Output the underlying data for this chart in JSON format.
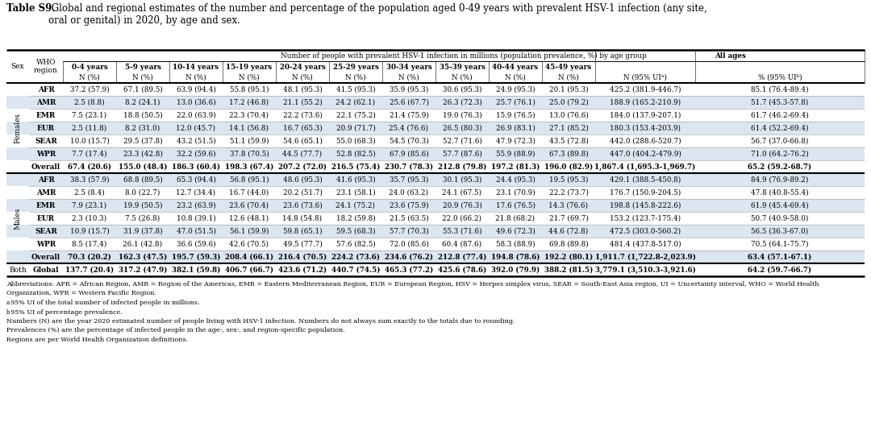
{
  "title_bold": "Table S9.",
  "title_rest": " Global and regional estimates of the number and percentage of the population aged 0-49 years with prevalent HSV-1 infection (any site,\noral or genital) in 2020, by age and sex.",
  "header_main": "Number of people with prevalent HSV-1 infection in millions (population prevalence, %) by age group",
  "females_data": [
    [
      "AFR",
      "37.2 (57.9)",
      "67.1 (89.5)",
      "63.9 (94.4)",
      "55.8 (95.1)",
      "48.1 (95.3)",
      "41.5 (95.3)",
      "35.9 (95.3)",
      "30.6 (95.3)",
      "24.9 (95.3)",
      "20.1 (95.3)",
      "425.2 (381.9-446.7)",
      "85.1 (76.4-89.4)"
    ],
    [
      "AMR",
      "2.5 (8.8)",
      "8.2 (24.1)",
      "13.0 (36.6)",
      "17.2 (46.8)",
      "21.1 (55.2)",
      "24.2 (62.1)",
      "25.6 (67.7)",
      "26.3 (72.3)",
      "25.7 (76.1)",
      "25.0 (79.2)",
      "188.9 (165.2-210.9)",
      "51.7 (45.3-57.8)"
    ],
    [
      "EMR",
      "7.5 (23.1)",
      "18.8 (50.5)",
      "22.0 (63.9)",
      "22.3 (70.4)",
      "22.2 (73.6)",
      "22.1 (75.2)",
      "21.4 (75.9)",
      "19.0 (76.3)",
      "15.9 (76.5)",
      "13.0 (76.6)",
      "184.0 (137.9-207.1)",
      "61.7 (46.2-69.4)"
    ],
    [
      "EUR",
      "2.5 (11.8)",
      "8.2 (31.0)",
      "12.0 (45.7)",
      "14.1 (56.8)",
      "16.7 (65.3)",
      "20.9 (71.7)",
      "25.4 (76.6)",
      "26.5 (80.3)",
      "26.9 (83.1)",
      "27.1 (85.2)",
      "180.3 (153.4-203.9)",
      "61.4 (52.2-69.4)"
    ],
    [
      "SEAR",
      "10.0 (15.7)",
      "29.5 (37.8)",
      "43.2 (51.5)",
      "51.1 (59.9)",
      "54.6 (65.1)",
      "55.0 (68.3)",
      "54.5 (70.3)",
      "52.7 (71.6)",
      "47.9 (72.3)",
      "43.5 (72.8)",
      "442.0 (288.6-520.7)",
      "56.7 (37.0-66.8)"
    ],
    [
      "WPR",
      "7.7 (17.4)",
      "23.3 (42.8)",
      "32.2 (59.6)",
      "37.8 (70.5)",
      "44.5 (77.7)",
      "52.8 (82.5)",
      "67.9 (85.6)",
      "57.7 (87.6)",
      "55.9 (88.9)",
      "67.3 (89.8)",
      "447.0 (404.2-479.9)",
      "71.0 (64.2-76.2)"
    ],
    [
      "Overall",
      "67.4 (20.6)",
      "155.0 (48.4)",
      "186.3 (60.4)",
      "198.3 (67.4)",
      "207.2 (72.0)",
      "216.5 (75.4)",
      "230.7 (78.3)",
      "212.8 (79.8)",
      "197.2 (81.3)",
      "196.0 (82.9)",
      "1,867.4 (1,695.3-1,969.7)",
      "65.2 (59.2-68.7)"
    ]
  ],
  "males_data": [
    [
      "AFR",
      "38.3 (57.9)",
      "68.8 (89.5)",
      "65.3 (94.4)",
      "56.8 (95.1)",
      "48.6 (95.3)",
      "41.6 (95.3)",
      "35.7 (95.3)",
      "30.1 (95.3)",
      "24.4 (95.3)",
      "19.5 (95.3)",
      "429.1 (388.5-450.8)",
      "84.9 (76.9-89.2)"
    ],
    [
      "AMR",
      "2.5 (8.4)",
      "8.0 (22.7)",
      "12.7 (34.4)",
      "16.7 (44.0)",
      "20.2 (51.7)",
      "23.1 (58.1)",
      "24.0 (63.2)",
      "24.1 (67.5)",
      "23.1 (70.9)",
      "22.2 (73.7)",
      "176.7 (150.9-204.5)",
      "47.8 (40.8-55.4)"
    ],
    [
      "EMR",
      "7.9 (23.1)",
      "19.9 (50.5)",
      "23.2 (63.9)",
      "23.6 (70.4)",
      "23.6 (73.6)",
      "24.1 (75.2)",
      "23.6 (75.9)",
      "20.9 (76.3)",
      "17.6 (76.5)",
      "14.3 (76.6)",
      "198.8 (145.8-222.6)",
      "61.9 (45.4-69.4)"
    ],
    [
      "EUR",
      "2.3 (10.3)",
      "7.5 (26.8)",
      "10.8 (39.1)",
      "12.6 (48.1)",
      "14.8 (54.8)",
      "18.2 (59.8)",
      "21.5 (63.5)",
      "22.0 (66.2)",
      "21.8 (68.2)",
      "21.7 (69.7)",
      "153.2 (123.7-175.4)",
      "50.7 (40.9-58.0)"
    ],
    [
      "SEAR",
      "10.9 (15.7)",
      "31.9 (37.8)",
      "47.0 (51.5)",
      "56.1 (59.9)",
      "59.8 (65.1)",
      "59.5 (68.3)",
      "57.7 (70.3)",
      "55.3 (71.6)",
      "49.6 (72.3)",
      "44.6 (72.8)",
      "472.5 (303.0-560.2)",
      "56.5 (36.3-67.0)"
    ],
    [
      "WPR",
      "8.5 (17.4)",
      "26.1 (42.8)",
      "36.6 (59.6)",
      "42.6 (70.5)",
      "49.5 (77.7)",
      "57.6 (82.5)",
      "72.0 (85.6)",
      "60.4 (87.6)",
      "58.3 (88.9)",
      "69.8 (89.8)",
      "481.4 (437.8-517.0)",
      "70.5 (64.1-75.7)"
    ],
    [
      "Overall",
      "70.3 (20.2)",
      "162.3 (47.5)",
      "195.7 (59.3)",
      "208.4 (66.1)",
      "216.4 (70.5)",
      "224.2 (73.6)",
      "234.6 (76.2)",
      "212.8 (77.4)",
      "194.8 (78.6)",
      "192.2 (80.1)",
      "1,911.7 (1,722.8-2,023.9)",
      "63.4 (57.1-67.1)"
    ]
  ],
  "both_data": [
    [
      "Global",
      "137.7 (20.4)",
      "317.2 (47.9)",
      "382.1 (59.8)",
      "406.7 (66.7)",
      "423.6 (71.2)",
      "440.7 (74.5)",
      "465.3 (77.2)",
      "425.6 (78.6)",
      "392.0 (79.9)",
      "388.2 (81.5)",
      "3,779.1 (3,510.3-3,921.6)",
      "64.2 (59.7-66.7)"
    ]
  ],
  "alt_row_indices_females": [
    1,
    3,
    5
  ],
  "alt_row_indices_males": [
    0,
    2,
    4,
    6
  ],
  "footnotes": [
    "Abbreviations: AFR = African Region, AMR = Region of the Americas, EMR = Eastern Mediterranean Region, EUR = European Region, HSV = Herpes simplex virus, SEAR = South-East Asia region, UI = Uncertainty interval, WHO = World Health",
    "Organization, WPR = Western Pacific Region.",
    "a 95% UI of the total number of infected people in millions.",
    "b 95% UI of percentage prevalence.",
    "Numbers (N) are the year 2020 estimated number of people living with HSV-1 infection. Numbers do not always sum exactly to the totals due to rounding.",
    "Prevalences (%) are the percentage of infected people in the age-, sex-, and region-specific population.",
    "Regions are per World Health Organization definitions."
  ],
  "footnote_superscripts": [
    "a",
    "b"
  ],
  "blue_row_color": "#dce6f1",
  "white_row_color": "#ffffff"
}
